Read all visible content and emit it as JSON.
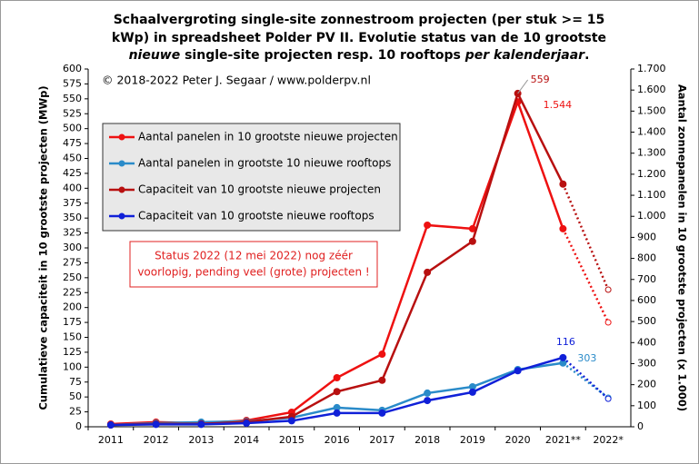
{
  "chart_data": {
    "type": "line",
    "title": [
      [
        "Schaalvergroting  single-site  zonnestroom  projecten  (per stuk >= 15"
      ],
      [
        "kWp) in spreadsheet Polder PV II. Evolutie status van de 10 grootste"
      ],
      [
        "nieuwe",
        " single-site  projecten  resp.  10  rooftops ",
        "per kalenderjaar",
        "."
      ]
    ],
    "copyright": "© 2018-2022  Peter J. Segaar / www.polderpv.nl",
    "annotation": [
      "Status 2022 (12 mei 2022) nog zéér",
      "voorlopig, pending veel (grote) projecten !"
    ],
    "ylabel": "Cumulatieve capaciteit in 10 grootste projecten (MWp)",
    "y2label": "Aantal zonnepanelen in 10 grootste projecten (x 1.000)",
    "categories": [
      "2011",
      "2012",
      "2013",
      "2014",
      "2015",
      "2016",
      "2017",
      "2018",
      "2019",
      "2020",
      "2021**",
      "2022*"
    ],
    "ylim": [
      0,
      600
    ],
    "yticks": [
      0,
      25,
      50,
      75,
      100,
      125,
      150,
      175,
      200,
      225,
      250,
      275,
      300,
      325,
      350,
      375,
      400,
      425,
      450,
      475,
      500,
      525,
      550,
      575,
      600
    ],
    "y2lim": [
      0,
      1700
    ],
    "y2ticks": [
      0,
      100,
      200,
      300,
      400,
      500,
      600,
      700,
      800,
      900,
      {
        "value": 1000,
        "label": "1.000"
      },
      {
        "value": 1100,
        "label": "1.100"
      },
      {
        "value": 1200,
        "label": "1.200"
      },
      {
        "value": 1300,
        "label": "1.300"
      },
      {
        "value": 1400,
        "label": "1.400"
      },
      {
        "value": 1500,
        "label": "1.500"
      },
      {
        "value": 1600,
        "label": "1.600"
      },
      {
        "value": 1700,
        "label": "1.700"
      }
    ],
    "series": [
      {
        "name": "Aantal panelen in 10 grootste nieuwe projecten",
        "color": "#ee1111",
        "axis": "y2",
        "values": [
          13,
          22,
          17,
          30,
          69,
          233,
          345,
          958,
          941,
          1544,
          941,
          496
        ],
        "value_labels": [
          null,
          null,
          null,
          null,
          null,
          null,
          null,
          null,
          null,
          "1.544",
          null,
          null
        ]
      },
      {
        "name": "Aantal panelen in grootste 10 nieuwe rooftops",
        "color": "#2a8bc9",
        "axis": "y2",
        "values": [
          9,
          17,
          22,
          26,
          43,
          91,
          78,
          160,
          190,
          272,
          303,
          138
        ],
        "value_labels": [
          null,
          null,
          null,
          null,
          null,
          null,
          null,
          null,
          null,
          null,
          "303",
          null
        ]
      },
      {
        "name": "Capaciteit van 10 grootste nieuwe projecten",
        "color": "#b81010",
        "values": [
          3,
          5,
          5,
          8,
          17,
          59,
          78,
          259,
          311,
          559,
          407,
          230
        ],
        "value_labels": [
          null,
          null,
          null,
          null,
          null,
          null,
          null,
          null,
          null,
          "559",
          null,
          null
        ]
      },
      {
        "name": "Capaciteit van 10 grootste nieuwe rooftops",
        "color": "#1020d8",
        "values": [
          3,
          4,
          4,
          6,
          10,
          23,
          23,
          44,
          58,
          94,
          116,
          47
        ],
        "value_labels": [
          null,
          null,
          null,
          null,
          null,
          null,
          null,
          null,
          null,
          null,
          "116",
          null
        ]
      }
    ]
  }
}
